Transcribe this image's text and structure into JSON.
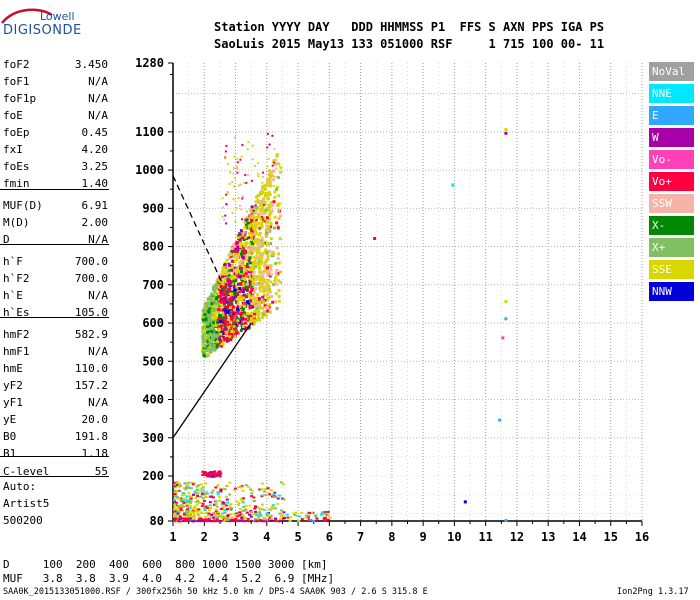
{
  "logo": {
    "line1": "Lowell",
    "line2": "DIGISONDE"
  },
  "header": {
    "line1": "Station YYYY DAY   DDD HHMMSS P1  FFS S AXN PPS IGA PS",
    "line2": "SaoLuis 2015 May13 133 051000 RSF     1 715 100 00- 11"
  },
  "params": [
    {
      "name": "foF2",
      "value": "3.450"
    },
    {
      "name": "foF1",
      "value": "N/A"
    },
    {
      "name": "foF1p",
      "value": "N/A"
    },
    {
      "name": "foE",
      "value": "N/A"
    },
    {
      "name": "foEp",
      "value": "0.45"
    },
    {
      "name": "fxI",
      "value": "4.20"
    },
    {
      "name": "foEs",
      "value": "3.25"
    },
    {
      "name": "fmin",
      "value": "1.40"
    },
    {
      "name": "MUF(D)",
      "value": "6.91"
    },
    {
      "name": "M(D)",
      "value": "2.00"
    },
    {
      "name": "D",
      "value": "N/A"
    },
    {
      "name": "h`F",
      "value": "700.0"
    },
    {
      "name": "h`F2",
      "value": "700.0"
    },
    {
      "name": "h`E",
      "value": "N/A"
    },
    {
      "name": "h`Es",
      "value": "105.0"
    },
    {
      "name": "hmF2",
      "value": "582.9"
    },
    {
      "name": "hmF1",
      "value": "N/A"
    },
    {
      "name": "hmE",
      "value": "110.0"
    },
    {
      "name": "yF2",
      "value": "157.2"
    },
    {
      "name": "yF1",
      "value": "N/A"
    },
    {
      "name": "yE",
      "value": "20.0"
    },
    {
      "name": "B0",
      "value": "191.8"
    },
    {
      "name": "B1",
      "value": "1.18"
    },
    {
      "name": "C-level",
      "value": "55"
    }
  ],
  "auto_lines": [
    "Auto:",
    "Artist5",
    "500200"
  ],
  "legend": [
    {
      "label": "NoVal",
      "color": "#a0a0a0"
    },
    {
      "label": "NNE",
      "color": "#00e8ff"
    },
    {
      "label": "E",
      "color": "#30a8ff"
    },
    {
      "label": "W",
      "color": "#a800a8"
    },
    {
      "label": "Vo-",
      "color": "#ff40b8"
    },
    {
      "label": "Vo+",
      "color": "#ff0040"
    },
    {
      "label": "SSW",
      "color": "#f4b4a8"
    },
    {
      "label": "X-",
      "color": "#008800"
    },
    {
      "label": "X+",
      "color": "#80c060"
    },
    {
      "label": "SSE",
      "color": "#d8d800"
    },
    {
      "label": "NNW",
      "color": "#0000d8"
    }
  ],
  "bottom": {
    "line1": "D     100  200  400  600  800 1000 1500 3000 [km]",
    "line2": "MUF   3.8  3.8  3.9  4.0  4.2  4.4  5.2  6.9 [MHz]"
  },
  "footer": {
    "left": "SAA0K_2015133051000.RSF / 300fx256h 50 kHz 5.0 km / DPS-4 SAA0K 903 / 2.6 S 315.8 E",
    "right": "Ion2Png 1.3.17"
  },
  "chart_data": {
    "type": "scatter",
    "title": "",
    "xlabel": "",
    "ylabel": "",
    "xlim": [
      1,
      16
    ],
    "x_ticks": [
      1,
      2,
      3,
      4,
      5,
      6,
      7,
      8,
      9,
      10,
      11,
      12,
      13,
      14,
      15,
      16
    ],
    "y_ticks": [
      80,
      200,
      300,
      400,
      500,
      600,
      700,
      800,
      900,
      1000,
      1100,
      1280
    ],
    "y_scale": "piecewise: 80-200 compressed, 200-1280 linear",
    "grid": true,
    "clusters": [
      {
        "name": "F-trace",
        "x_range": [
          1.9,
          4.4
        ],
        "y_range": [
          510,
          1050
        ],
        "colors": [
          "SSE",
          "Vo+",
          "X-",
          "W",
          "SSW",
          "X+",
          "NNW"
        ]
      },
      {
        "name": "Es-layer",
        "x_range": [
          1.0,
          6.0
        ],
        "y_range": [
          82,
          190
        ],
        "colors": [
          "Vo+",
          "SSE",
          "X+",
          "W",
          "E",
          "NNE"
        ]
      },
      {
        "name": "low-freq-echo",
        "x_range": [
          1.9,
          2.5
        ],
        "y_range": [
          200,
          215
        ],
        "colors": [
          "Vo+",
          "W"
        ]
      }
    ],
    "isolated_points": [
      {
        "x": 7.4,
        "y": 825,
        "legend": "Vo+"
      },
      {
        "x": 9.9,
        "y": 965,
        "legend": "NNE"
      },
      {
        "x": 10.3,
        "y": 135,
        "legend": "NNW"
      },
      {
        "x": 11.4,
        "y": 350,
        "legend": "E"
      },
      {
        "x": 11.5,
        "y": 565,
        "legend": "Vo-"
      },
      {
        "x": 11.6,
        "y": 1110,
        "legend": "SSE"
      },
      {
        "x": 11.6,
        "y": 1100,
        "legend": "W"
      },
      {
        "x": 11.6,
        "y": 660,
        "legend": "SSE"
      },
      {
        "x": 11.6,
        "y": 615,
        "legend": "E"
      },
      {
        "x": 11.6,
        "y": 85,
        "legend": "E"
      }
    ],
    "lines": [
      {
        "style": "dashed",
        "points": [
          [
            1.0,
            985
          ],
          [
            2.6,
            700
          ]
        ]
      },
      {
        "style": "solid",
        "points": [
          [
            1.0,
            300
          ],
          [
            3.5,
            600
          ]
        ]
      }
    ]
  }
}
